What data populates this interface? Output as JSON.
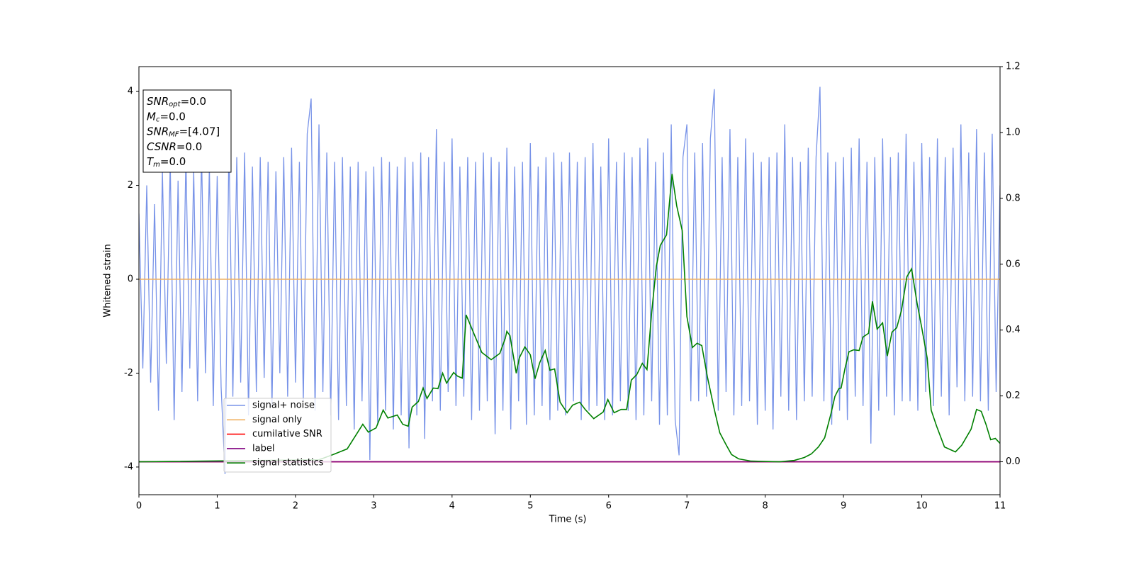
{
  "chart_data": {
    "type": "line",
    "xlabel": "Time (s)",
    "ylabel": "Whitened strain",
    "xlim": [
      0,
      11
    ],
    "xticks": [
      0,
      1,
      2,
      3,
      4,
      5,
      6,
      7,
      8,
      9,
      10,
      11
    ],
    "ylim": [
      -4.59,
      4.53
    ],
    "yticks": [
      -4,
      -2,
      0,
      2,
      4
    ],
    "y2lim": [
      -0.1,
      1.2
    ],
    "y2ticks": [
      {
        "value": 0,
        "label": "0.0"
      },
      0.2,
      0.4,
      0.6,
      0.8,
      {
        "value": 1,
        "label": "1.0"
      },
      1.2
    ],
    "legend": "lower left",
    "annotation": [
      {
        "base": "SNR",
        "sub": "opt",
        "rest": "=0.0"
      },
      {
        "base": "M",
        "sub": "c",
        "rest": "=0.0"
      },
      {
        "base": "SNR",
        "sub": "MF",
        "rest": "=[4.07]"
      },
      {
        "base": "CSNR",
        "sub": "",
        "rest": "=0.0"
      },
      {
        "base": "T",
        "sub": "m",
        "rest": "=0.0"
      }
    ],
    "series": [
      {
        "name": "signal+ noise",
        "color": "#7893e8",
        "axis": "y",
        "x": [
          0,
          0.05,
          0.1,
          0.15,
          0.2,
          0.25,
          0.3,
          0.35,
          0.4,
          0.45,
          0.5,
          0.55,
          0.6,
          0.65,
          0.7,
          0.75,
          0.8,
          0.85,
          0.9,
          0.95,
          1,
          1.05,
          1.1,
          1.15,
          1.2,
          1.25,
          1.3,
          1.35,
          1.4,
          1.45,
          1.5,
          1.55,
          1.6,
          1.65,
          1.7,
          1.75,
          1.8,
          1.85,
          1.9,
          1.95,
          2,
          2.05,
          2.1,
          2.15,
          2.2,
          2.25,
          2.3,
          2.35,
          2.4,
          2.45,
          2.5,
          2.55,
          2.6,
          2.65,
          2.7,
          2.75,
          2.8,
          2.85,
          2.9,
          2.95,
          3,
          3.05,
          3.1,
          3.15,
          3.2,
          3.25,
          3.3,
          3.35,
          3.4,
          3.45,
          3.5,
          3.55,
          3.6,
          3.65,
          3.7,
          3.75,
          3.8,
          3.85,
          3.9,
          3.95,
          4,
          4.05,
          4.1,
          4.15,
          4.2,
          4.25,
          4.3,
          4.35,
          4.4,
          4.45,
          4.5,
          4.55,
          4.6,
          4.65,
          4.7,
          4.75,
          4.8,
          4.85,
          4.9,
          4.95,
          5,
          5.05,
          5.1,
          5.15,
          5.2,
          5.25,
          5.3,
          5.35,
          5.4,
          5.45,
          5.5,
          5.55,
          5.6,
          5.65,
          5.7,
          5.75,
          5.8,
          5.85,
          5.9,
          5.95,
          6,
          6.05,
          6.1,
          6.15,
          6.2,
          6.25,
          6.3,
          6.35,
          6.4,
          6.45,
          6.5,
          6.55,
          6.6,
          6.65,
          6.7,
          6.75,
          6.8,
          6.85,
          6.9,
          6.95,
          7,
          7.05,
          7.1,
          7.15,
          7.2,
          7.25,
          7.3,
          7.35,
          7.4,
          7.45,
          7.5,
          7.55,
          7.6,
          7.65,
          7.7,
          7.75,
          7.8,
          7.85,
          7.9,
          7.95,
          8,
          8.05,
          8.1,
          8.15,
          8.2,
          8.25,
          8.3,
          8.35,
          8.4,
          8.45,
          8.5,
          8.55,
          8.6,
          8.65,
          8.7,
          8.75,
          8.8,
          8.85,
          8.9,
          8.95,
          9,
          9.05,
          9.1,
          9.15,
          9.2,
          9.25,
          9.3,
          9.35,
          9.4,
          9.45,
          9.5,
          9.55,
          9.6,
          9.65,
          9.7,
          9.75,
          9.8,
          9.85,
          9.9,
          9.95,
          10,
          10.05,
          10.1,
          10.15,
          10.2,
          10.25,
          10.3,
          10.35,
          10.4,
          10.45,
          10.5,
          10.55,
          10.6,
          10.65,
          10.7,
          10.75,
          10.8,
          10.85,
          10.9,
          10.95,
          11
        ],
        "values": [
          1.4,
          -1.9,
          2.0,
          -2.2,
          1.6,
          -2.8,
          2.3,
          -1.8,
          2.5,
          -3.0,
          2.1,
          -2.4,
          2.6,
          -1.9,
          2.3,
          -2.6,
          2.7,
          -2.0,
          2.4,
          -2.7,
          2.2,
          -2.3,
          -4.15,
          2.9,
          -2.5,
          2.6,
          -2.2,
          2.7,
          -2.9,
          2.4,
          -2.4,
          2.6,
          -2.1,
          2.5,
          -2.7,
          2.3,
          -2.0,
          2.6,
          -2.5,
          2.8,
          -2.2,
          2.5,
          -2.6,
          3.1,
          3.85,
          -2.8,
          3.3,
          -2.4,
          2.7,
          -2.9,
          2.5,
          -3.0,
          2.6,
          -2.7,
          2.4,
          -3.2,
          2.5,
          -2.6,
          2.3,
          -3.85,
          2.4,
          -3.1,
          2.6,
          -2.8,
          2.5,
          -3.2,
          2.4,
          -2.9,
          2.6,
          -3.6,
          2.5,
          -2.9,
          2.7,
          -3.4,
          2.6,
          -2.6,
          3.2,
          -2.8,
          2.5,
          -2.4,
          3.0,
          -2.7,
          2.4,
          -2.5,
          2.6,
          -3.0,
          2.5,
          -2.8,
          2.7,
          -2.6,
          2.6,
          -3.3,
          2.5,
          -2.8,
          2.8,
          -3.2,
          2.4,
          -2.6,
          2.5,
          -3.1,
          2.9,
          -2.9,
          2.4,
          -2.7,
          2.6,
          -3.0,
          2.7,
          -2.8,
          2.5,
          -2.9,
          2.7,
          -2.6,
          2.5,
          -3.0,
          2.6,
          -2.8,
          2.9,
          -2.7,
          2.4,
          -3.0,
          3.0,
          -2.9,
          2.5,
          -2.6,
          2.7,
          -2.8,
          2.6,
          -3.0,
          2.8,
          -2.9,
          3.0,
          -2.6,
          2.5,
          -3.1,
          2.7,
          -2.9,
          3.3,
          -3.0,
          -3.75,
          2.6,
          3.3,
          -2.6,
          2.7,
          -2.6,
          2.9,
          -2.5,
          3.0,
          4.05,
          -2.8,
          2.6,
          -2.4,
          3.2,
          -2.9,
          2.6,
          -2.7,
          3.0,
          -2.6,
          2.7,
          -3.1,
          2.5,
          -2.8,
          2.6,
          -3.2,
          2.7,
          -2.5,
          3.3,
          -2.8,
          2.6,
          -3.0,
          2.5,
          -2.6,
          2.8,
          -2.5,
          2.6,
          4.1,
          -2.6,
          2.7,
          -3.1,
          2.5,
          -2.8,
          2.6,
          -3.0,
          2.8,
          -2.5,
          3.0,
          -2.7,
          2.5,
          -3.5,
          2.6,
          -2.8,
          3.0,
          -2.5,
          2.6,
          -2.9,
          2.7,
          -2.6,
          3.1,
          -2.6,
          2.5,
          -2.8,
          2.9,
          -2.4,
          2.6,
          -2.7,
          3.0,
          -2.5,
          2.6,
          -2.9,
          2.8,
          -2.3,
          3.3,
          -2.6,
          2.7,
          -2.5,
          3.2,
          -2.6,
          2.7,
          -2.8,
          3.1,
          -2.4,
          2.0
        ]
      },
      {
        "name": "signal only",
        "color": "#f0b060",
        "axis": "y",
        "x": [
          0,
          11
        ],
        "values": [
          0,
          0
        ]
      },
      {
        "name": "cumilative SNR",
        "color": "#ff0000",
        "axis": "y2",
        "x": [
          0,
          11
        ],
        "values": [
          0,
          0
        ]
      },
      {
        "name": "label",
        "color": "#800080",
        "axis": "y2",
        "x": [
          0,
          11
        ],
        "values": [
          0,
          0
        ]
      },
      {
        "name": "signal statistics",
        "color": "#008000",
        "axis": "y2",
        "x": [
          0,
          2.3,
          2.48,
          2.66,
          2.86,
          2.93,
          3.03,
          3.12,
          3.18,
          3.3,
          3.37,
          3.44,
          3.49,
          3.57,
          3.63,
          3.68,
          3.76,
          3.82,
          3.88,
          3.93,
          4.02,
          4.07,
          4.13,
          4.18,
          4.29,
          4.38,
          4.5,
          4.61,
          4.68,
          4.7,
          4.74,
          4.82,
          4.86,
          4.93,
          5.0,
          5.06,
          5.12,
          5.19,
          5.25,
          5.31,
          5.38,
          5.47,
          5.54,
          5.63,
          5.7,
          5.81,
          5.93,
          5.99,
          6.07,
          6.16,
          6.23,
          6.29,
          6.36,
          6.43,
          6.49,
          6.55,
          6.61,
          6.66,
          6.74,
          6.81,
          6.87,
          6.94,
          7.0,
          7.07,
          7.13,
          7.19,
          7.26,
          7.35,
          7.42,
          7.5,
          7.57,
          7.66,
          7.82,
          8.18,
          8.37,
          8.5,
          8.59,
          8.68,
          8.76,
          8.84,
          8.89,
          8.94,
          8.97,
          9.02,
          9.07,
          9.13,
          9.2,
          9.25,
          9.32,
          9.37,
          9.43,
          9.5,
          9.56,
          9.62,
          9.68,
          9.74,
          9.81,
          9.87,
          9.94,
          10.0,
          10.07,
          10.12,
          10.19,
          10.29,
          10.43,
          10.51,
          10.63,
          10.7,
          10.76,
          10.82,
          10.88,
          10.94,
          11.0
        ],
        "values": [
          0,
          0.006,
          0.022,
          0.039,
          0.114,
          0.09,
          0.103,
          0.157,
          0.133,
          0.142,
          0.114,
          0.108,
          0.166,
          0.183,
          0.224,
          0.192,
          0.224,
          0.222,
          0.269,
          0.239,
          0.271,
          0.26,
          0.254,
          0.446,
          0.383,
          0.332,
          0.31,
          0.329,
          0.375,
          0.396,
          0.383,
          0.269,
          0.316,
          0.349,
          0.325,
          0.252,
          0.301,
          0.338,
          0.278,
          0.282,
          0.181,
          0.149,
          0.172,
          0.181,
          0.159,
          0.131,
          0.151,
          0.189,
          0.149,
          0.159,
          0.159,
          0.248,
          0.265,
          0.299,
          0.28,
          0.454,
          0.594,
          0.657,
          0.689,
          0.874,
          0.777,
          0.702,
          0.441,
          0.347,
          0.36,
          0.353,
          0.26,
          0.159,
          0.088,
          0.052,
          0.022,
          0.009,
          0.002,
          0,
          0.004,
          0.013,
          0.024,
          0.045,
          0.073,
          0.146,
          0.198,
          0.222,
          0.224,
          0.284,
          0.334,
          0.34,
          0.338,
          0.379,
          0.39,
          0.487,
          0.403,
          0.422,
          0.321,
          0.394,
          0.407,
          0.459,
          0.562,
          0.586,
          0.482,
          0.407,
          0.314,
          0.157,
          0.108,
          0.045,
          0.03,
          0.05,
          0.099,
          0.159,
          0.153,
          0.114,
          0.067,
          0.071,
          0.056
        ]
      }
    ]
  }
}
